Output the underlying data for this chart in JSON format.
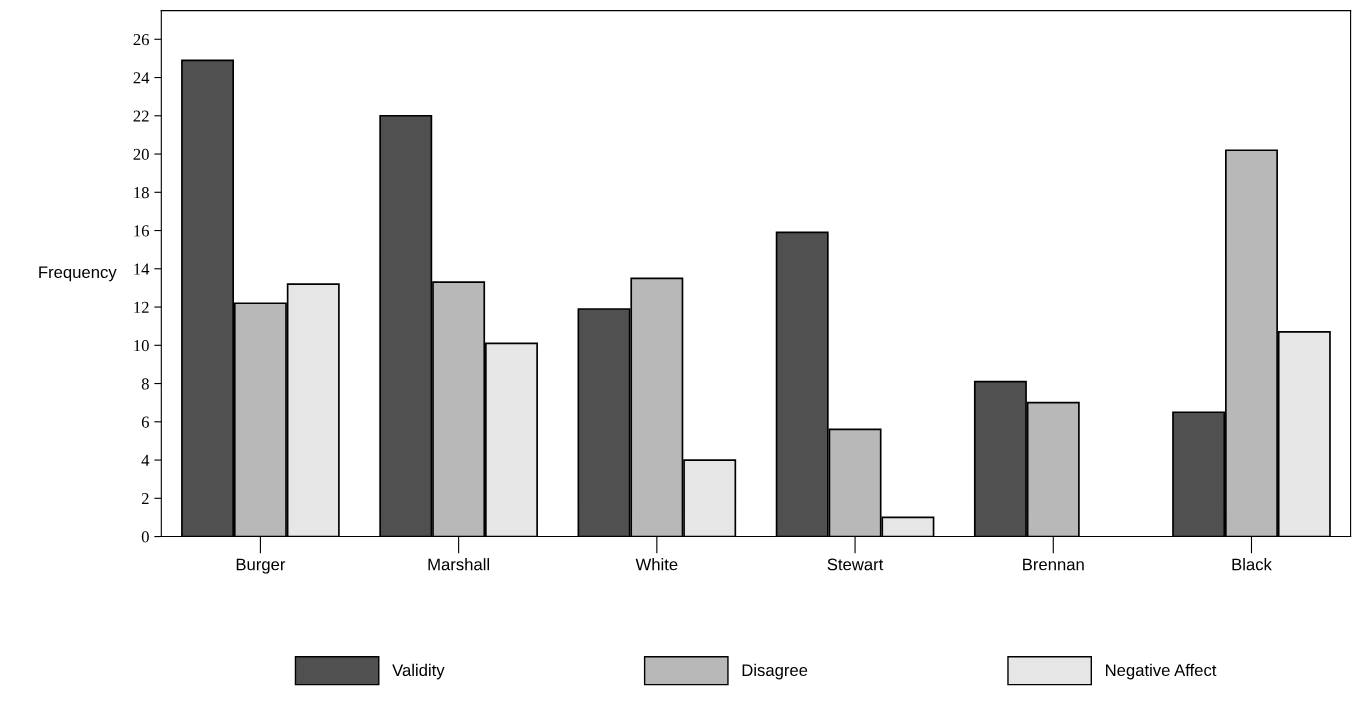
{
  "chart_data": {
    "type": "bar",
    "ylabel": "Frequency",
    "categories": [
      "Burger",
      "Marshall",
      "White",
      "Stewart",
      "Brennan",
      "Black"
    ],
    "series": [
      {
        "name": "Validity",
        "color": "#505050",
        "values": [
          24.9,
          22.0,
          11.9,
          15.9,
          8.1,
          6.5
        ]
      },
      {
        "name": "Disagree",
        "color": "#b8b8b8",
        "values": [
          12.2,
          13.3,
          13.5,
          5.6,
          7.0,
          20.2
        ]
      },
      {
        "name": "Negative Affect",
        "color": "#e6e6e6",
        "values": [
          13.2,
          10.1,
          4.0,
          1.0,
          0,
          10.7
        ]
      }
    ],
    "ylim": [
      0,
      27.5
    ],
    "yticks": [
      0,
      2,
      4,
      6,
      8,
      10,
      12,
      14,
      16,
      18,
      20,
      22,
      24,
      26
    ],
    "grid": false,
    "legend": "bottom"
  }
}
